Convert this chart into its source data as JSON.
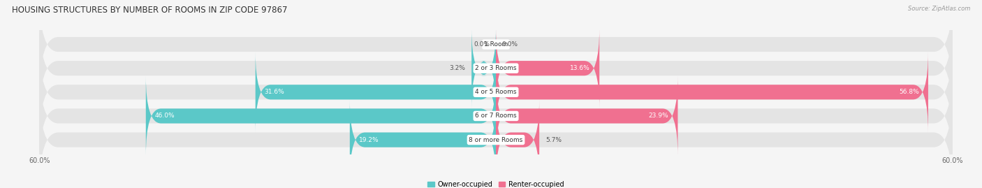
{
  "title": "HOUSING STRUCTURES BY NUMBER OF ROOMS IN ZIP CODE 97867",
  "source": "Source: ZipAtlas.com",
  "categories": [
    "1 Room",
    "2 or 3 Rooms",
    "4 or 5 Rooms",
    "6 or 7 Rooms",
    "8 or more Rooms"
  ],
  "owner_values": [
    0.0,
    3.2,
    31.6,
    46.0,
    19.2
  ],
  "renter_values": [
    0.0,
    13.6,
    56.8,
    23.9,
    5.7
  ],
  "owner_color": "#5bc8c8",
  "renter_color": "#f07090",
  "background_color": "#f5f5f5",
  "bar_bg_color": "#e4e4e4",
  "axis_max": 60.0,
  "legend_owner": "Owner-occupied",
  "legend_renter": "Renter-occupied",
  "bar_height": 0.62,
  "inner_label_threshold": 7.0,
  "title_fontsize": 8.5,
  "source_fontsize": 6.0,
  "bar_label_fontsize": 6.5,
  "cat_label_fontsize": 6.5,
  "tick_fontsize": 7.0,
  "legend_fontsize": 7.0
}
